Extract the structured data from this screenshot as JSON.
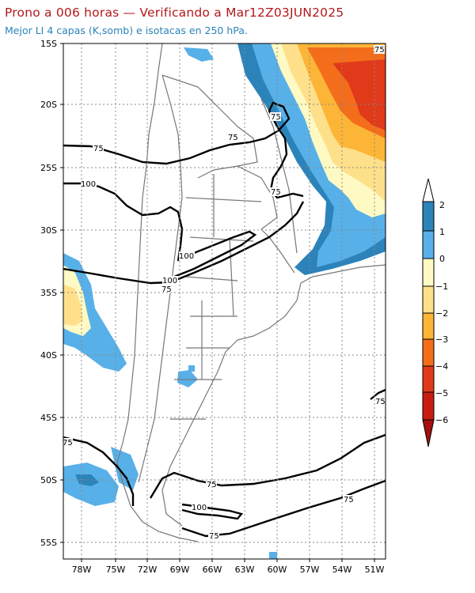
{
  "title": "Prono a 006 horas — Verificando a Mar12Z03JUN2025",
  "subtitle": "Mejor LI 4 capas (K,somb) e isotacas en 250 hPa.",
  "map": {
    "lat_labels": [
      "15S",
      "20S",
      "25S",
      "30S",
      "35S",
      "40S",
      "45S",
      "50S",
      "55S"
    ],
    "lon_labels": [
      "78W",
      "75W",
      "72W",
      "69W",
      "66W",
      "63W",
      "60W",
      "57W",
      "54W",
      "51W"
    ],
    "isotach_labels": [
      "75",
      "75",
      "75",
      "75",
      "100",
      "100",
      "100",
      "75",
      "75",
      "75",
      "75",
      "75",
      "100",
      "75",
      "75"
    ]
  },
  "legend": {
    "labels": [
      "2",
      "1",
      "0",
      "−1",
      "−2",
      "−3",
      "−4",
      "−5",
      "−6"
    ],
    "colors": [
      "#2b83ba",
      "#57b0e8",
      "#fff9c4",
      "#fee08b",
      "#fdb538",
      "#f46d1b",
      "#e03a1a",
      "#c81c12",
      "#a50f0f"
    ]
  },
  "colors": {
    "title": "#b2181b",
    "subtitle": "#2b83ba",
    "li_pos2": "#2b83ba",
    "li_pos1": "#57b0e8",
    "li_0": "#fff9c4",
    "li_neg1": "#fee08b",
    "li_neg2": "#fdb538",
    "li_neg3": "#f46d1b",
    "li_neg4": "#e03a1a"
  }
}
